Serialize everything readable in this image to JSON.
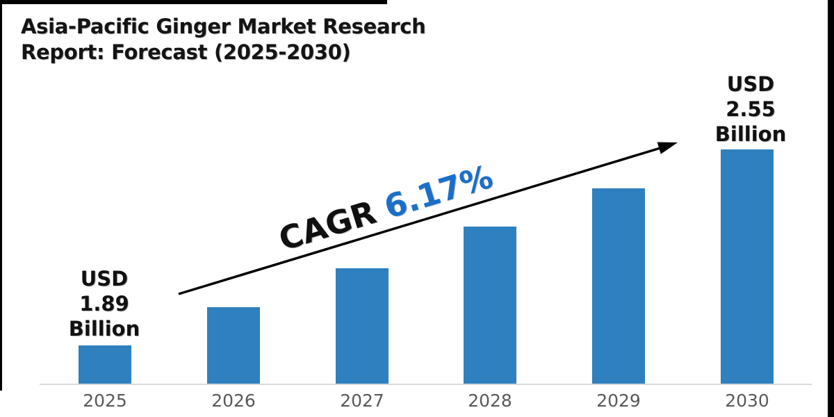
{
  "title": {
    "line1": "Asia-Pacific Ginger Market Research",
    "line2": "Report: Forecast (2025-2030)"
  },
  "chart_data": {
    "type": "bar",
    "title": "Asia-Pacific Ginger Market Research Report: Forecast (2025-2030)",
    "categories": [
      "2025",
      "2026",
      "2027",
      "2028",
      "2029",
      "2030"
    ],
    "values": [
      1.89,
      2.02,
      2.15,
      2.29,
      2.42,
      2.55
    ],
    "unit": "USD Billion",
    "labeled_points": [
      {
        "category": "2025",
        "label": "USD 1.89 Billion"
      },
      {
        "category": "2030",
        "label": "USD 2.55 Billion"
      }
    ],
    "cagr_text": "CAGR 6.17%",
    "xlabel": "",
    "ylabel": "",
    "ylim_displayed": [
      1.76,
      2.55
    ],
    "grid": false,
    "legend": false,
    "colors": {
      "bar": "#2E80BE",
      "cagr_accent": "#1A6FC9",
      "axis_line": "#D9D9D9",
      "tick_label": "#595959",
      "text": "#141414"
    }
  },
  "annotations": {
    "first_bar_label": {
      "lines": [
        "USD",
        "1.89",
        "Billion"
      ]
    },
    "last_bar_label": {
      "lines": [
        "USD",
        "2.55",
        "Billion"
      ]
    },
    "cagr": {
      "prefix": "CAGR",
      "value": "6.17%"
    }
  }
}
